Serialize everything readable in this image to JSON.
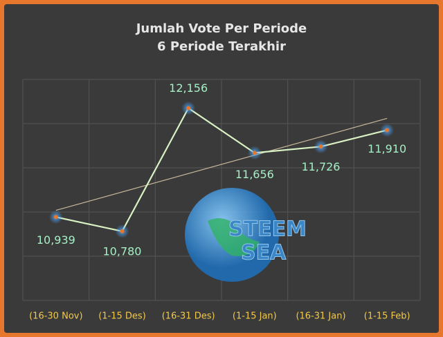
{
  "chart_data": {
    "type": "line",
    "title": "Jumlah Vote Per Periode",
    "subtitle": "6 Periode Terakhir",
    "categories": [
      "(16-30 Nov)",
      "(1-15 Des)",
      "(16-31 Des)",
      "(1-15 Jan)",
      "(16-31 Jan)",
      "(1-15 Feb)"
    ],
    "series": [
      {
        "name": "Jumlah Vote",
        "color": "#d9f2c4",
        "values": [
          10939,
          10780,
          12156,
          11656,
          11726,
          11910
        ],
        "value_labels": [
          "10,939",
          "10,780",
          "12,156",
          "11,656",
          "11,726",
          "11,910"
        ]
      }
    ],
    "marker_color": "#e8772e",
    "trendline": true,
    "trendline_color": "#c8b89a",
    "ylim": [
      10000,
      12500
    ],
    "logo_text": [
      "STEEM",
      "SEA"
    ]
  }
}
